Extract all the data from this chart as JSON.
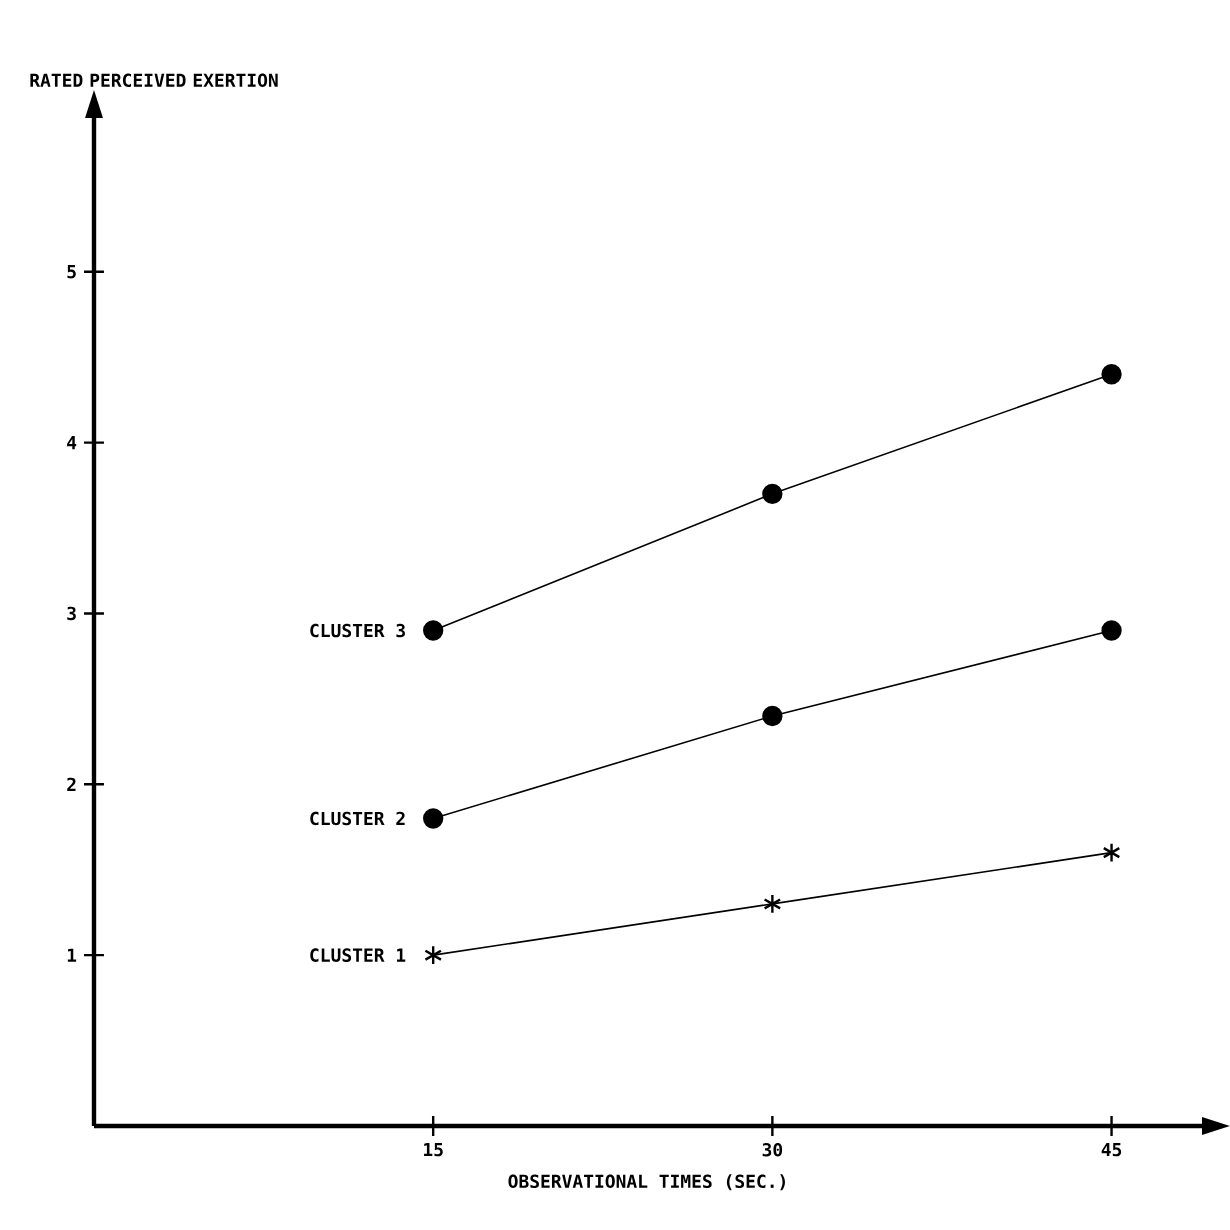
{
  "chart_data": {
    "type": "line",
    "xlabel": "OBSERVATIONAL TIMES (SEC.)",
    "ylabel": "RATED PERCEIVED EXERTION",
    "x": [
      15,
      30,
      45
    ],
    "xlim": [
      0,
      49
    ],
    "ylim": [
      0,
      5.9
    ],
    "xticks": [
      15,
      30,
      45
    ],
    "yticks": [
      1,
      2,
      3,
      4,
      5
    ],
    "grid": false,
    "legend": false,
    "line_style": "solid",
    "series": [
      {
        "name": "CLUSTER 3",
        "color": "#000000",
        "marker": "circle",
        "values": [
          2.9,
          3.7,
          4.4
        ]
      },
      {
        "name": "CLUSTER 2",
        "color": "#000000",
        "marker": "circle",
        "values": [
          1.8,
          2.4,
          2.9
        ]
      },
      {
        "name": "CLUSTER 1",
        "color": "#000000",
        "marker": "cross",
        "values": [
          1.0,
          1.3,
          1.6
        ]
      }
    ]
  }
}
